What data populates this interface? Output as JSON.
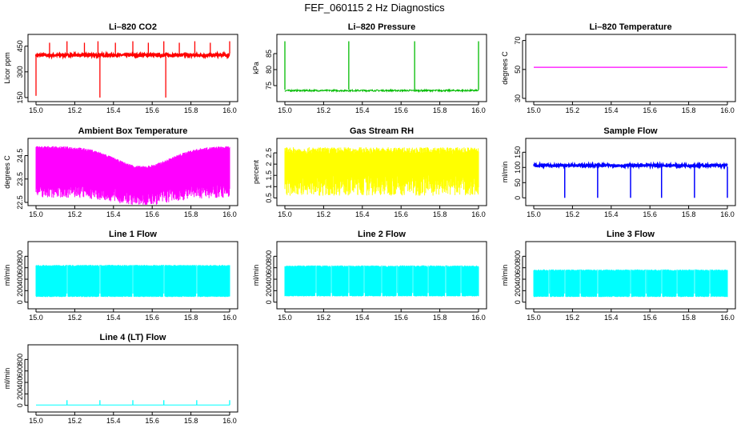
{
  "page_title": "FEF_060115  2 Hz Diagnostics",
  "chart_data": [
    {
      "type": "line",
      "title": "Li–820 CO2",
      "xlabel": "",
      "ylabel": "Licor ppm",
      "color": "#ff0000",
      "xlim": [
        15.0,
        16.0
      ],
      "ylim": [
        145,
        500
      ],
      "xticks": [
        "15.0",
        "15.2",
        "15.4",
        "15.6",
        "15.8",
        "16.0"
      ],
      "yticks": [
        150,
        300,
        450
      ],
      "baseline": [
        390,
        405
      ],
      "spikes_up": [
        15.16,
        15.32,
        15.5,
        15.66,
        15.82,
        16.0
      ],
      "spikes_down": [
        15.33,
        15.67
      ]
    },
    {
      "type": "line",
      "title": "Li–820 Pressure",
      "xlabel": "",
      "ylabel": "kPa",
      "color": "#00bb00",
      "xlim": [
        15.0,
        16.0
      ],
      "ylim": [
        71,
        90
      ],
      "xticks": [
        "15.0",
        "15.2",
        "15.4",
        "15.6",
        "15.8",
        "16.0"
      ],
      "yticks": [
        75,
        80,
        85
      ],
      "baseline": [
        73.2,
        73.7
      ],
      "spikes_up": [
        15.0,
        15.33,
        15.67,
        16.0
      ]
    },
    {
      "type": "line",
      "title": "Li–820 Temperature",
      "xlabel": "",
      "ylabel": "degrees C",
      "color": "#ff00ff",
      "xlim": [
        15.0,
        16.0
      ],
      "ylim": [
        30,
        72
      ],
      "xticks": [
        "15.0",
        "15.2",
        "15.4",
        "15.6",
        "15.8",
        "16.0"
      ],
      "yticks": [
        30,
        50,
        70
      ],
      "values_constant": 51.5
    },
    {
      "type": "line",
      "title": "Ambient Box Temperature",
      "xlabel": "",
      "ylabel": "degrees C",
      "color": "#ff00ff",
      "xlim": [
        15.0,
        16.0
      ],
      "ylim": [
        22.5,
        25.1
      ],
      "xticks": [
        "15.0",
        "15.2",
        "15.4",
        "15.6",
        "15.8",
        "16.0"
      ],
      "yticks": [
        22.5,
        23.5,
        24.5
      ],
      "envelope": "high-frequency oscillation ~23.0–24.9 early, dipping ~22.7–24.0 near 15.5–15.6, recovering to ~23.2–24.6 by 16.0"
    },
    {
      "type": "line",
      "title": "Gas Stream RH",
      "xlabel": "",
      "ylabel": "percent",
      "color": "#ffff00",
      "xlim": [
        15.0,
        16.0
      ],
      "ylim": [
        0.3,
        3.0
      ],
      "xticks": [
        "15.0",
        "15.2",
        "15.4",
        "15.6",
        "15.8",
        "16.0"
      ],
      "yticks": [
        0.5,
        1.0,
        1.5,
        2.0,
        2.5
      ],
      "envelope": "oscillation between ~0.6 and ~2.7 percent"
    },
    {
      "type": "line",
      "title": "Sample Flow",
      "xlabel": "",
      "ylabel": "ml/min",
      "color": "#0000ff",
      "xlim": [
        15.0,
        16.0
      ],
      "ylim": [
        -15,
        185
      ],
      "xticks": [
        "15.0",
        "15.2",
        "15.4",
        "15.6",
        "15.8",
        "16.0"
      ],
      "yticks": [
        0,
        50,
        100,
        150
      ],
      "baseline": [
        103,
        110
      ],
      "dips": [
        15.16,
        15.33,
        15.5,
        15.66,
        15.83,
        16.0
      ]
    },
    {
      "type": "line",
      "title": "Line 1 Flow",
      "xlabel": "",
      "ylabel": "ml/min",
      "color": "#00ffff",
      "xlim": [
        15.0,
        16.0
      ],
      "ylim": [
        -60,
        1000
      ],
      "xticks": [
        "15.0",
        "15.2",
        "15.4",
        "15.6",
        "15.8",
        "16.0"
      ],
      "yticks": [
        0,
        200,
        400,
        600,
        800
      ],
      "envelope": [
        90,
        650
      ],
      "gaps": [
        15.16,
        15.33,
        15.5,
        15.66,
        15.83
      ]
    },
    {
      "type": "line",
      "title": "Line 2 Flow",
      "xlabel": "",
      "ylabel": "ml/min",
      "color": "#00ffff",
      "xlim": [
        15.0,
        16.0
      ],
      "ylim": [
        -60,
        1000
      ],
      "xticks": [
        "15.0",
        "15.2",
        "15.4",
        "15.6",
        "15.8",
        "16.0"
      ],
      "yticks": [
        0,
        200,
        400,
        600,
        800
      ],
      "envelope": [
        100,
        640
      ],
      "gaps": [
        15.16,
        15.24,
        15.33,
        15.41,
        15.5,
        15.58,
        15.66,
        15.74,
        15.83,
        15.91
      ]
    },
    {
      "type": "line",
      "title": "Line 3 Flow",
      "xlabel": "",
      "ylabel": "ml/min",
      "color": "#00ffff",
      "xlim": [
        15.0,
        16.0
      ],
      "ylim": [
        -60,
        1000
      ],
      "xticks": [
        "15.0",
        "15.2",
        "15.4",
        "15.6",
        "15.8",
        "16.0"
      ],
      "yticks": [
        0,
        200,
        400,
        600,
        800
      ],
      "envelope": [
        90,
        570
      ],
      "gaps": [
        15.08,
        15.16,
        15.24,
        15.33,
        15.5,
        15.58,
        15.66,
        15.74,
        15.83,
        15.91
      ]
    },
    {
      "type": "line",
      "title": "Line 4 (LT) Flow",
      "xlabel": "",
      "ylabel": "ml/min",
      "color": "#00ffff",
      "xlim": [
        15.0,
        16.0
      ],
      "ylim": [
        -60,
        1000
      ],
      "xticks": [
        "15.0",
        "15.2",
        "15.4",
        "15.6",
        "15.8",
        "16.0"
      ],
      "yticks": [
        0,
        200,
        400,
        600,
        800
      ],
      "baseline": [
        5,
        5
      ],
      "spikes_up": [
        15.16,
        15.33,
        15.5,
        15.66,
        15.83,
        16.0
      ],
      "spike_height": 90
    }
  ]
}
